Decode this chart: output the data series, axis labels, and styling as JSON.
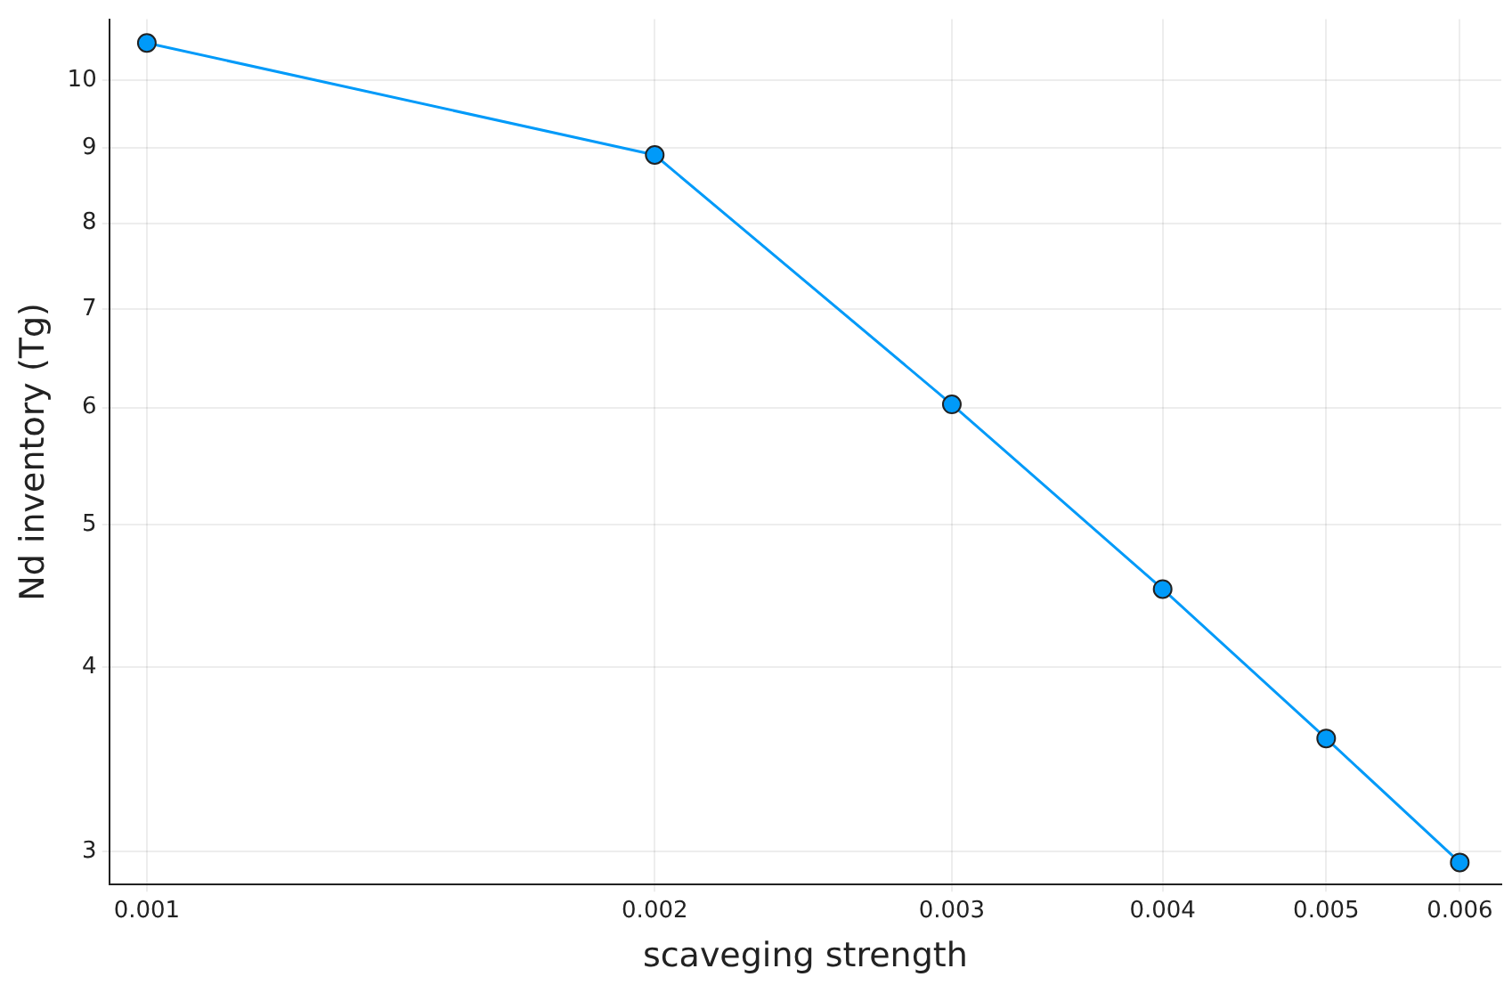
{
  "chart_data": {
    "type": "line",
    "xlabel": "scaveging strength",
    "ylabel": "Nd inventory (Tg)",
    "log": "xy",
    "x": [
      0.001,
      0.002,
      0.003,
      0.004,
      0.005,
      0.006
    ],
    "series": [
      {
        "color": "#009af9",
        "values": [
          10.6,
          8.9,
          6.03,
          4.52,
          3.58,
          2.95
        ]
      }
    ],
    "xlim": [
      0.00095,
      0.00635
    ],
    "xticks": [
      0.001,
      0.002,
      0.003,
      0.004,
      0.005,
      0.006
    ],
    "ylim": [
      2.85,
      11.0
    ],
    "yticks": [
      3,
      4,
      5,
      6,
      7,
      8,
      9,
      10
    ],
    "grid": true,
    "legend": false,
    "marker": "circle",
    "line_style": "solid"
  }
}
